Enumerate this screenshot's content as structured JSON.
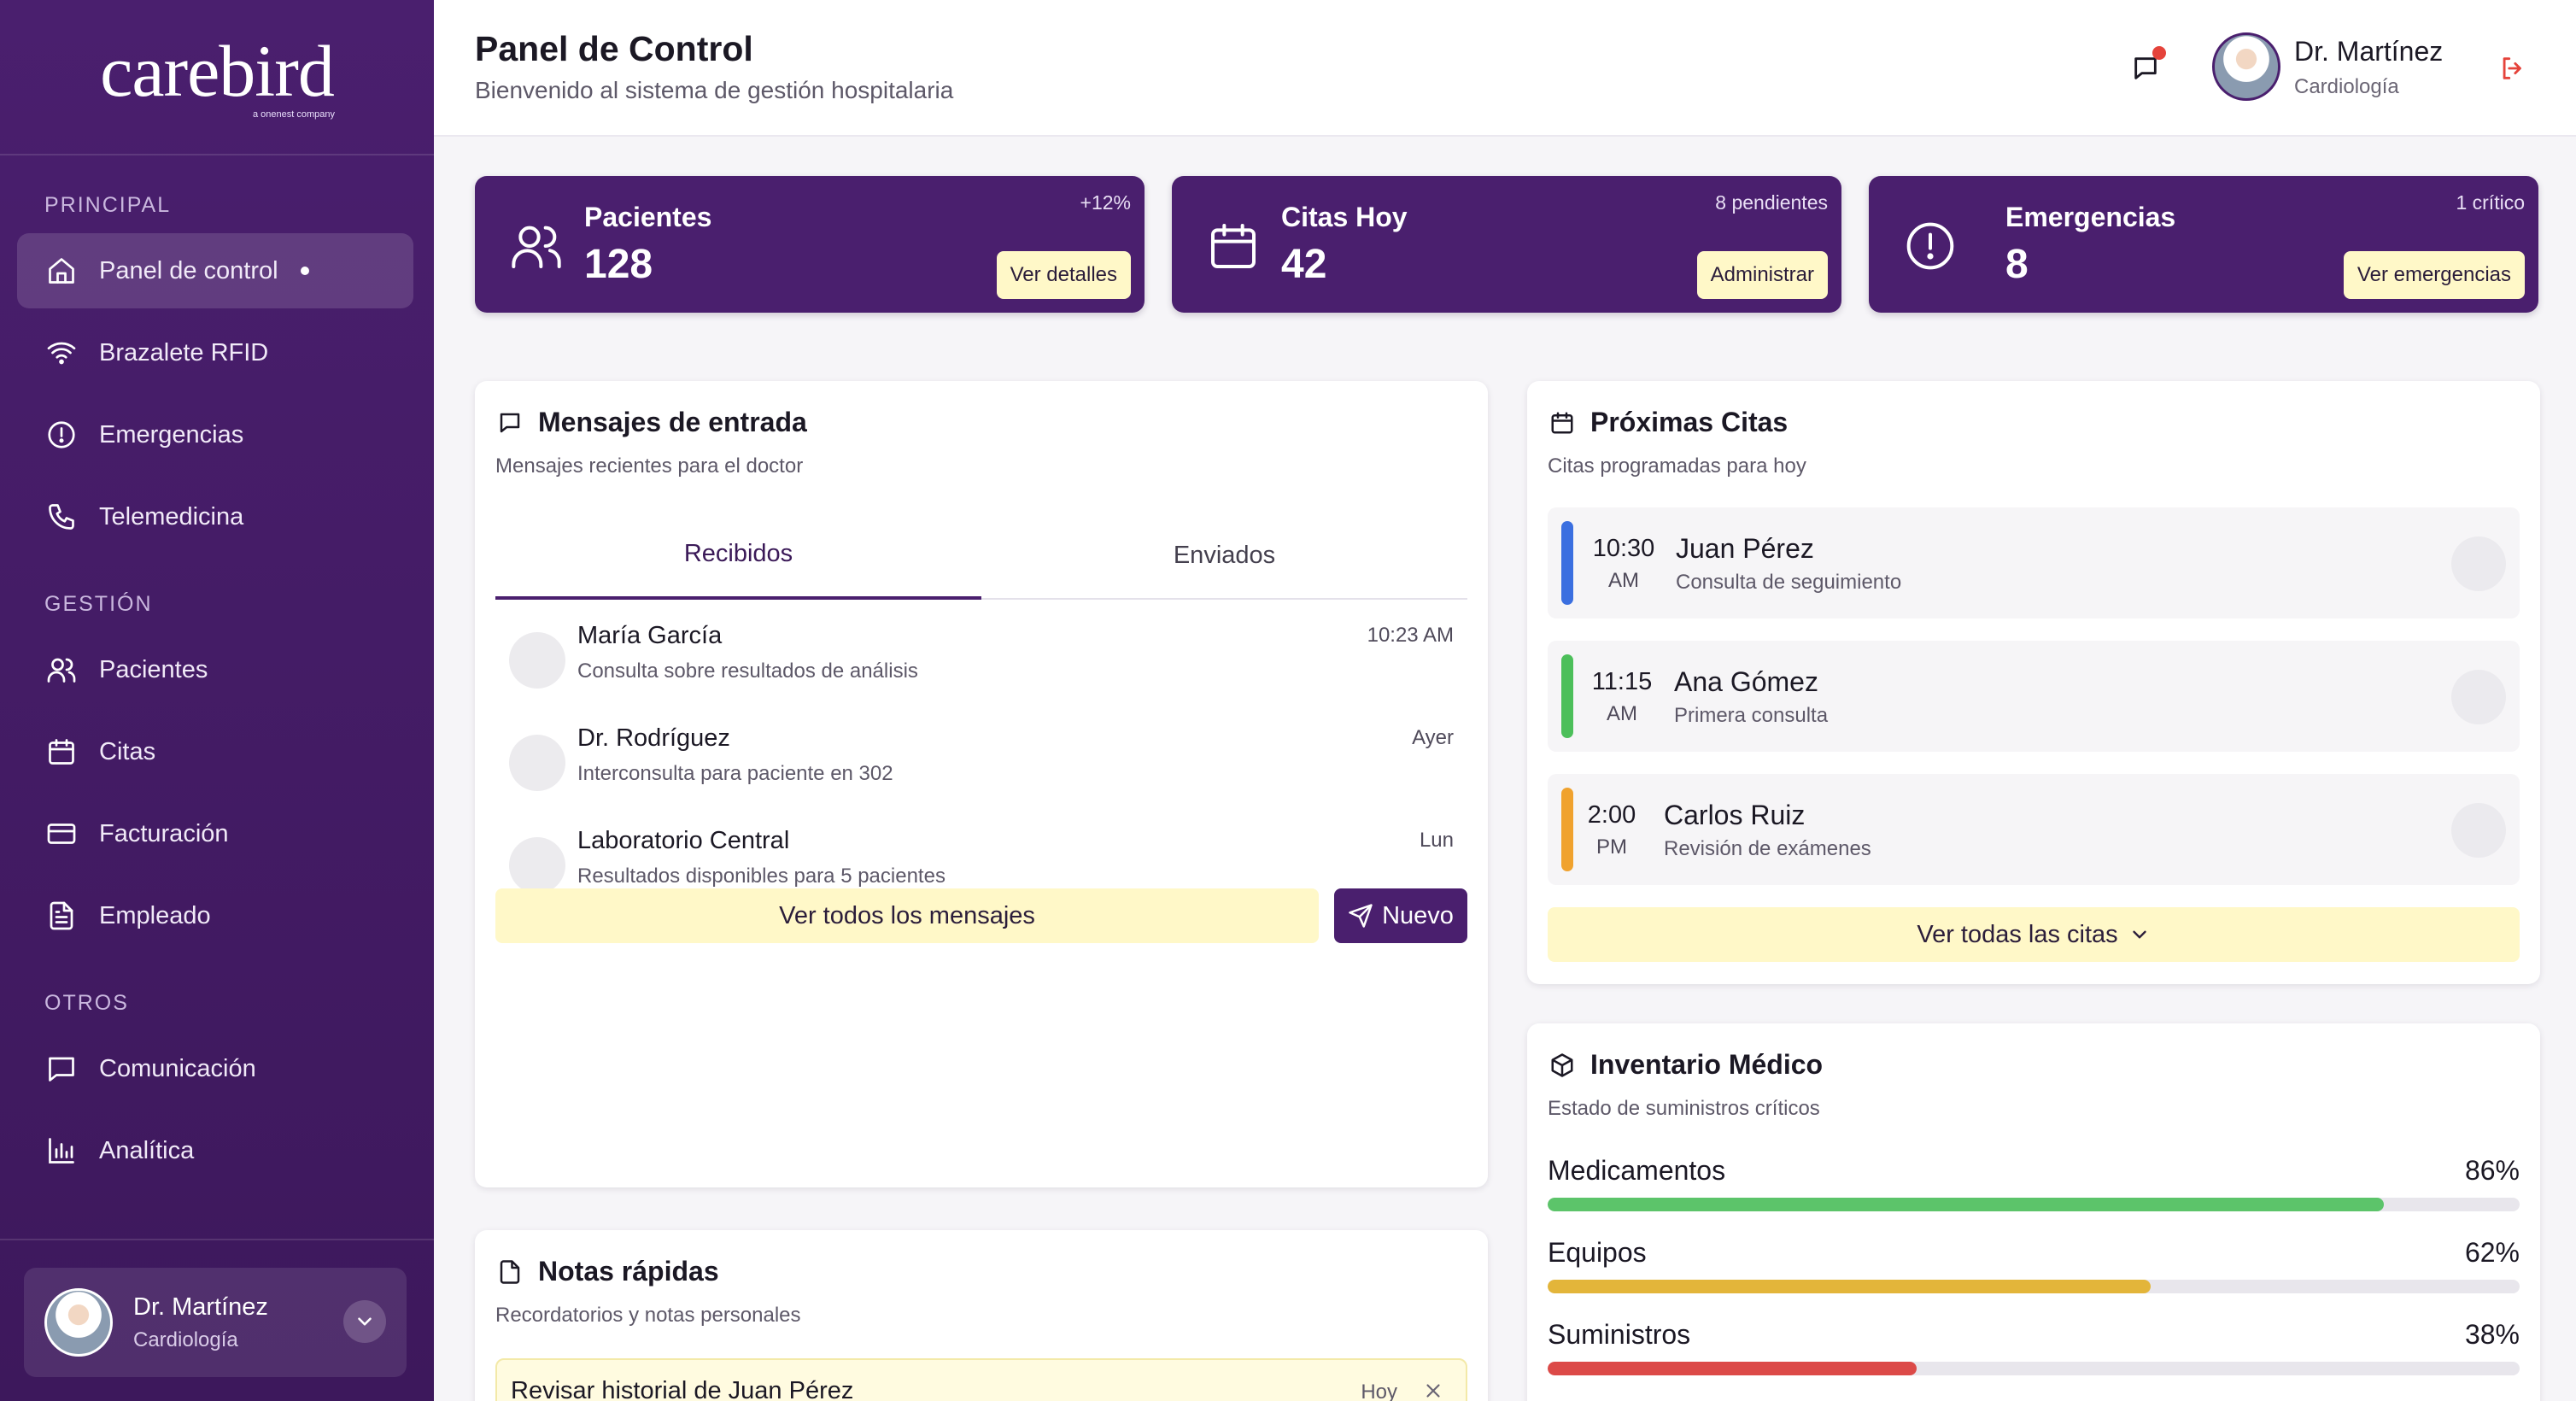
{
  "brand": {
    "name": "carebird",
    "tagline": "a onenest company"
  },
  "sidebar": {
    "sections": [
      {
        "label": "PRINCIPAL",
        "items": [
          {
            "label": "Panel de control",
            "icon": "home-icon",
            "active": true
          },
          {
            "label": "Brazalete RFID",
            "icon": "wifi-icon"
          },
          {
            "label": "Emergencias",
            "icon": "alert-circle-icon"
          },
          {
            "label": "Telemedicina",
            "icon": "phone-icon"
          }
        ]
      },
      {
        "label": "GESTIÓN",
        "items": [
          {
            "label": "Pacientes",
            "icon": "users-icon"
          },
          {
            "label": "Citas",
            "icon": "calendar-icon"
          },
          {
            "label": "Facturación",
            "icon": "credit-card-icon"
          },
          {
            "label": "Empleado",
            "icon": "file-text-icon"
          }
        ]
      },
      {
        "label": "OTROS",
        "items": [
          {
            "label": "Comunicación",
            "icon": "message-square-icon"
          },
          {
            "label": "Analítica",
            "icon": "bar-chart-icon"
          }
        ]
      }
    ],
    "user": {
      "name": "Dr. Martínez",
      "role": "Cardiología"
    }
  },
  "header": {
    "title": "Panel de Control",
    "subtitle": "Bienvenido al sistema de gestión hospitalaria",
    "user": {
      "name": "Dr. Martínez",
      "role": "Cardiología"
    }
  },
  "stats": [
    {
      "title": "Pacientes",
      "value": "128",
      "badge": "+12%",
      "action": "Ver detalles",
      "icon": "users-icon"
    },
    {
      "title": "Citas Hoy",
      "value": "42",
      "badge": "8 pendientes",
      "action": "Administrar",
      "icon": "calendar-icon"
    },
    {
      "title": "Emergencias",
      "value": "8",
      "badge": "1 crítico",
      "action": "Ver emergencias",
      "icon": "alert-circle-icon"
    }
  ],
  "messages": {
    "title": "Mensajes de entrada",
    "subtitle": "Mensajes recientes para el doctor",
    "tabs": [
      "Recibidos",
      "Enviados"
    ],
    "items": [
      {
        "sender": "María García",
        "text": "Consulta sobre resultados de análisis",
        "time": "10:23 AM"
      },
      {
        "sender": "Dr. Rodríguez",
        "text": "Interconsulta para paciente en 302",
        "time": "Ayer"
      },
      {
        "sender": "Laboratorio Central",
        "text": "Resultados disponibles para 5 pacientes",
        "time": "Lun"
      }
    ],
    "view_all": "Ver todos los mensajes",
    "new_label": "Nuevo"
  },
  "appointments": {
    "title": "Próximas Citas",
    "subtitle": "Citas programadas para hoy",
    "items": [
      {
        "time": "10:30",
        "ampm": "AM",
        "name": "Juan Pérez",
        "desc": "Consulta de seguimiento",
        "color": "#3b6fe0"
      },
      {
        "time": "11:15",
        "ampm": "AM",
        "name": "Ana Gómez",
        "desc": "Primera consulta",
        "color": "#4cbf5a"
      },
      {
        "time": "2:00",
        "ampm": "PM",
        "name": "Carlos Ruiz",
        "desc": "Revisión de exámenes",
        "color": "#f0a22e"
      }
    ],
    "view_all": "Ver todas las citas"
  },
  "inventory": {
    "title": "Inventario Médico",
    "subtitle": "Estado de suministros críticos",
    "items": [
      {
        "label": "Medicamentos",
        "percent": "86%",
        "value": 86,
        "color": "#5cc46a"
      },
      {
        "label": "Equipos",
        "percent": "62%",
        "value": 62,
        "color": "#e3b53a"
      },
      {
        "label": "Suministros",
        "percent": "38%",
        "value": 38,
        "color": "#dc4a48"
      }
    ]
  },
  "notes": {
    "title": "Notas rápidas",
    "subtitle": "Recordatorios y notas personales",
    "items": [
      {
        "text": "Revisar historial de Juan Pérez",
        "time": "Hoy"
      }
    ]
  }
}
